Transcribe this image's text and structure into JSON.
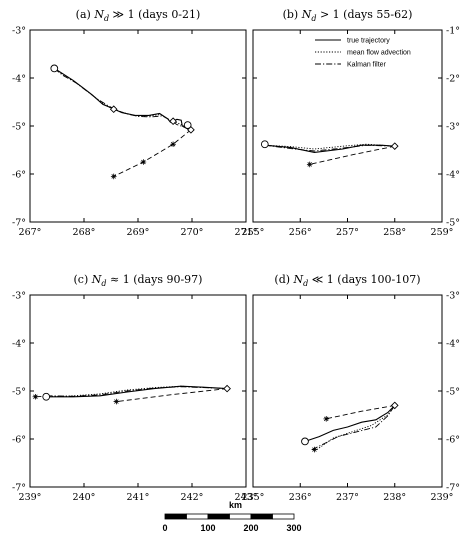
{
  "chart_data": [
    {
      "type": "line",
      "title": "(a) N_d ≫ 1 (days 0-21)",
      "title_parts": {
        "pre": "(a) ",
        "sym": "N",
        "sub": "d",
        "rel": " ≫ 1 (days 0-21)"
      },
      "xlim": [
        267,
        271
      ],
      "ylim": [
        -7,
        -3
      ],
      "xticks": [
        267,
        268,
        269,
        270,
        271
      ],
      "yticks_left": [
        -3,
        -4,
        -5,
        -6,
        -7
      ],
      "yticks_right": [],
      "series": [
        {
          "style": "solid",
          "points": [
            [
              267.45,
              -3.8
            ],
            [
              267.62,
              -3.92
            ],
            [
              267.8,
              -4.05
            ],
            [
              268.0,
              -4.22
            ],
            [
              268.15,
              -4.35
            ],
            [
              268.35,
              -4.55
            ],
            [
              268.5,
              -4.62
            ],
            [
              268.7,
              -4.72
            ],
            [
              268.95,
              -4.78
            ],
            [
              269.2,
              -4.78
            ],
            [
              269.4,
              -4.74
            ],
            [
              269.55,
              -4.85
            ],
            [
              269.6,
              -4.92
            ],
            [
              269.72,
              -4.86
            ],
            [
              269.8,
              -4.88
            ],
            [
              269.82,
              -5.0
            ],
            [
              269.9,
              -5.05
            ],
            [
              269.98,
              -5.08
            ]
          ]
        },
        {
          "style": "dotted",
          "points": [
            [
              267.45,
              -3.8
            ],
            [
              267.62,
              -3.93
            ],
            [
              267.82,
              -4.07
            ],
            [
              268.02,
              -4.24
            ],
            [
              268.2,
              -4.4
            ],
            [
              268.4,
              -4.57
            ],
            [
              268.55,
              -4.65
            ],
            [
              268.75,
              -4.73
            ],
            [
              268.98,
              -4.79
            ],
            [
              269.22,
              -4.79
            ],
            [
              269.42,
              -4.76
            ],
            [
              269.58,
              -4.87
            ],
            [
              269.7,
              -4.92
            ],
            [
              269.82,
              -4.98
            ],
            [
              269.98,
              -5.08
            ]
          ]
        },
        {
          "style": "dashdot",
          "points": [
            [
              267.45,
              -3.8
            ],
            [
              267.6,
              -3.94
            ],
            [
              267.85,
              -4.1
            ],
            [
              268.05,
              -4.27
            ],
            [
              268.25,
              -4.44
            ],
            [
              268.45,
              -4.58
            ],
            [
              268.6,
              -4.67
            ],
            [
              268.8,
              -4.75
            ],
            [
              269.0,
              -4.8
            ],
            [
              269.25,
              -4.81
            ],
            [
              269.45,
              -4.79
            ],
            [
              269.6,
              -4.88
            ],
            [
              269.72,
              -4.97
            ],
            [
              269.85,
              -5.02
            ],
            [
              269.98,
              -5.08
            ]
          ]
        },
        {
          "style": "dashed",
          "points": [
            [
              269.98,
              -5.08
            ],
            [
              269.65,
              -5.38
            ],
            [
              269.1,
              -5.75
            ],
            [
              268.55,
              -6.05
            ]
          ]
        }
      ],
      "markers": [
        {
          "shape": "circle",
          "x": 267.45,
          "y": -3.8
        },
        {
          "shape": "diamond",
          "x": 268.55,
          "y": -4.65
        },
        {
          "shape": "diamond",
          "x": 269.65,
          "y": -4.9
        },
        {
          "shape": "circle",
          "x": 269.92,
          "y": -4.98
        },
        {
          "shape": "diamond",
          "x": 269.98,
          "y": -5.08
        },
        {
          "shape": "star",
          "x": 269.65,
          "y": -5.38
        },
        {
          "shape": "star",
          "x": 269.1,
          "y": -5.75
        },
        {
          "shape": "star",
          "x": 268.55,
          "y": -6.05
        }
      ]
    },
    {
      "type": "line",
      "title": "(b) N_d > 1 (days 55-62)",
      "title_parts": {
        "pre": "(b) ",
        "sym": "N",
        "sub": "d",
        "rel": " > 1 (days 55-62)"
      },
      "xlim": [
        255,
        259
      ],
      "ylim": [
        -5,
        -1
      ],
      "xticks": [
        255,
        256,
        257,
        258,
        259
      ],
      "yticks_left": [],
      "yticks_right": [
        -1,
        -2,
        -3,
        -4,
        -5
      ],
      "legend": {
        "placement": "top-right",
        "entries": [
          {
            "label": "true trajectory",
            "style": "solid"
          },
          {
            "label": "mean flow advection",
            "style": "dotted"
          },
          {
            "label": "Kalman filter",
            "style": "dashdot"
          }
        ]
      },
      "series": [
        {
          "style": "solid",
          "points": [
            [
              255.25,
              -3.4
            ],
            [
              255.8,
              -3.45
            ],
            [
              256.3,
              -3.55
            ],
            [
              256.9,
              -3.48
            ],
            [
              257.3,
              -3.4
            ],
            [
              257.7,
              -3.4
            ],
            [
              258.0,
              -3.42
            ]
          ]
        },
        {
          "style": "dotted",
          "points": [
            [
              255.25,
              -3.4
            ],
            [
              255.8,
              -3.43
            ],
            [
              256.3,
              -3.48
            ],
            [
              256.9,
              -3.42
            ],
            [
              257.4,
              -3.38
            ],
            [
              258.0,
              -3.42
            ]
          ]
        },
        {
          "style": "dashdot",
          "points": [
            [
              255.25,
              -3.4
            ],
            [
              255.8,
              -3.47
            ],
            [
              256.3,
              -3.52
            ],
            [
              256.9,
              -3.46
            ],
            [
              257.4,
              -3.4
            ],
            [
              258.0,
              -3.42
            ]
          ]
        },
        {
          "style": "dashed",
          "points": [
            [
              258.0,
              -3.42
            ],
            [
              257.1,
              -3.6
            ],
            [
              256.2,
              -3.8
            ]
          ]
        }
      ],
      "markers": [
        {
          "shape": "circle",
          "x": 255.25,
          "y": -3.38
        },
        {
          "shape": "diamond",
          "x": 258.0,
          "y": -3.42
        },
        {
          "shape": "star",
          "x": 256.2,
          "y": -3.8
        }
      ]
    },
    {
      "type": "line",
      "title": "(c) N_d ≈ 1 (days 90-97)",
      "title_parts": {
        "pre": "(c) ",
        "sym": "N",
        "sub": "d",
        "rel": " ≈ 1 (days 90-97)"
      },
      "xlim": [
        239,
        243
      ],
      "ylim": [
        -7,
        -3
      ],
      "xticks": [
        239,
        240,
        241,
        242,
        243
      ],
      "yticks_left": [
        -3,
        -4,
        -5,
        -6,
        -7
      ],
      "yticks_right": [],
      "series": [
        {
          "style": "solid",
          "points": [
            [
              239.3,
              -5.12
            ],
            [
              239.8,
              -5.12
            ],
            [
              240.3,
              -5.1
            ],
            [
              240.8,
              -5.02
            ],
            [
              241.3,
              -4.95
            ],
            [
              241.8,
              -4.9
            ],
            [
              242.2,
              -4.92
            ],
            [
              242.65,
              -4.95
            ]
          ]
        },
        {
          "style": "dotted",
          "points": [
            [
              239.3,
              -5.12
            ],
            [
              239.8,
              -5.1
            ],
            [
              240.3,
              -5.06
            ],
            [
              240.8,
              -4.98
            ],
            [
              241.3,
              -4.93
            ],
            [
              241.8,
              -4.9
            ],
            [
              242.65,
              -4.95
            ]
          ]
        },
        {
          "style": "dashdot",
          "points": [
            [
              239.1,
              -5.12
            ],
            [
              239.4,
              -5.1
            ],
            [
              239.8,
              -5.11
            ],
            [
              240.3,
              -5.08
            ],
            [
              240.8,
              -5.0
            ],
            [
              241.3,
              -4.94
            ],
            [
              241.8,
              -4.91
            ],
            [
              242.65,
              -4.95
            ]
          ]
        },
        {
          "style": "dashed",
          "points": [
            [
              242.65,
              -4.95
            ],
            [
              241.6,
              -5.08
            ],
            [
              240.6,
              -5.22
            ]
          ]
        }
      ],
      "markers": [
        {
          "shape": "circle",
          "x": 239.3,
          "y": -5.12
        },
        {
          "shape": "star",
          "x": 239.1,
          "y": -5.12
        },
        {
          "shape": "diamond",
          "x": 242.65,
          "y": -4.95
        },
        {
          "shape": "star",
          "x": 240.6,
          "y": -5.22
        }
      ]
    },
    {
      "type": "line",
      "title": "(d) N_d ≪ 1 (days 100-107)",
      "title_parts": {
        "pre": "(d) ",
        "sym": "N",
        "sub": "d",
        "rel": " ≪ 1 (days 100-107)"
      },
      "xlim": [
        235,
        239
      ],
      "ylim": [
        -7,
        -3
      ],
      "xticks": [
        235,
        236,
        237,
        238,
        239
      ],
      "yticks_left": [],
      "yticks_right": [
        -3,
        -4,
        -5,
        -6,
        -7
      ],
      "series": [
        {
          "style": "solid",
          "points": [
            [
              236.1,
              -6.05
            ],
            [
              236.4,
              -5.95
            ],
            [
              236.7,
              -5.82
            ],
            [
              237.0,
              -5.75
            ],
            [
              237.3,
              -5.65
            ],
            [
              237.6,
              -5.6
            ],
            [
              237.85,
              -5.45
            ],
            [
              238.0,
              -5.3
            ]
          ]
        },
        {
          "style": "dotted",
          "points": [
            [
              236.35,
              -6.22
            ],
            [
              236.7,
              -5.98
            ],
            [
              237.1,
              -5.85
            ],
            [
              237.5,
              -5.72
            ],
            [
              237.85,
              -5.5
            ],
            [
              238.0,
              -5.3
            ]
          ]
        },
        {
          "style": "dashdot",
          "points": [
            [
              236.25,
              -6.22
            ],
            [
              236.5,
              -6.1
            ],
            [
              236.8,
              -5.95
            ],
            [
              237.2,
              -5.85
            ],
            [
              237.6,
              -5.75
            ],
            [
              237.85,
              -5.52
            ],
            [
              238.0,
              -5.3
            ]
          ]
        },
        {
          "style": "dashed",
          "points": [
            [
              238.0,
              -5.3
            ],
            [
              237.3,
              -5.42
            ],
            [
              236.55,
              -5.58
            ]
          ]
        }
      ],
      "markers": [
        {
          "shape": "circle",
          "x": 236.1,
          "y": -6.05
        },
        {
          "shape": "diamond",
          "x": 238.0,
          "y": -5.3
        },
        {
          "shape": "star",
          "x": 236.55,
          "y": -5.58
        },
        {
          "shape": "star",
          "x": 236.3,
          "y": -6.22
        }
      ]
    }
  ],
  "scale_bar": {
    "unit_label": "km",
    "max": 300,
    "ticks": [
      "0",
      "100",
      "200",
      "300"
    ]
  },
  "colors": {
    "line": "#000000",
    "background": "#ffffff"
  }
}
